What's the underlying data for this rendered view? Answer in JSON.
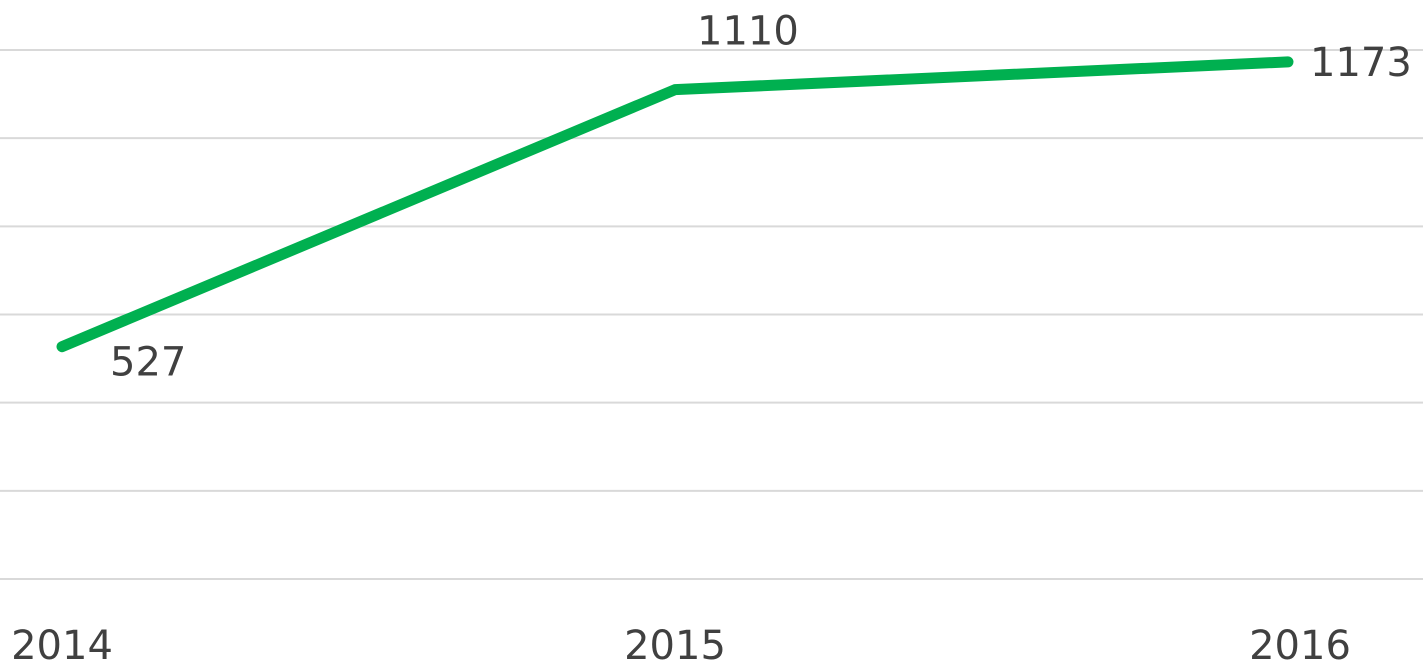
{
  "chart_data": {
    "type": "line",
    "categories": [
      "2014",
      "2015",
      "2016"
    ],
    "series": [
      {
        "color": "#00b050",
        "values": [
          527,
          1110,
          1173
        ]
      }
    ],
    "ylim": [
      0,
      1200
    ],
    "yticks": [
      0,
      200,
      400,
      600,
      800,
      1000,
      1200
    ],
    "grid": true,
    "ytick_labels": false,
    "data_labels": true
  }
}
